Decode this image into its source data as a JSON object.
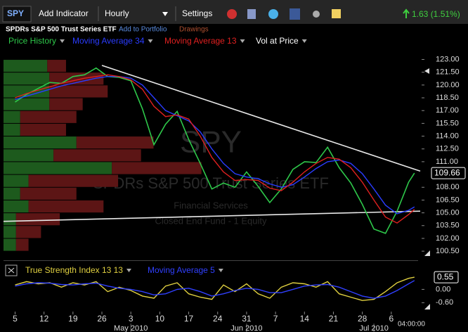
{
  "toolbar": {
    "symbol": "SPY",
    "add_indicator": "Add Indicator",
    "interval": "Hourly",
    "settings": "Settings",
    "change": "1.63 (1.51%)"
  },
  "header": {
    "name": "SPDRs S&P 500 Trust Series ETF",
    "add_portfolio": "Add to Portfolio",
    "drawings": "Drawings"
  },
  "watermark": [
    "SPY",
    "SPDRs S&P 500 Trust Series ETF",
    "Financial Services",
    "Closed End Fund - 1 Equity"
  ],
  "time_label": "04:00:00",
  "chart_data": [
    {
      "type": "line",
      "x": [
        0,
        2,
        4,
        6,
        8,
        10,
        12,
        14,
        16,
        18,
        20,
        22,
        24,
        26,
        28,
        30,
        32,
        34,
        36,
        38,
        40,
        42,
        44,
        46,
        48,
        50,
        52,
        54,
        56,
        58,
        60,
        62,
        64,
        66,
        68,
        69
      ],
      "series": [
        {
          "name": "Price History",
          "color": "#2ec84a",
          "values": [
            118.0,
            118.9,
            119.6,
            120.3,
            120.2,
            121.0,
            121.2,
            122.0,
            121.0,
            120.9,
            120.5,
            117.2,
            113.0,
            115.4,
            116.9,
            113.6,
            110.8,
            107.8,
            108.5,
            108.0,
            109.8,
            108.1,
            106.2,
            107.8,
            110.1,
            111.0,
            110.9,
            112.7,
            110.3,
            108.5,
            106.0,
            103.1,
            102.6,
            105.2,
            108.6,
            109.66
          ]
        },
        {
          "name": "Moving Average 34",
          "color": "#2a3cff",
          "values": [
            118.3,
            118.7,
            119.1,
            119.5,
            119.9,
            120.2,
            120.5,
            120.8,
            121.0,
            121.0,
            120.8,
            120.0,
            118.5,
            117.0,
            116.4,
            115.8,
            114.5,
            112.5,
            110.8,
            109.6,
            109.2,
            109.0,
            108.4,
            108.0,
            108.3,
            109.2,
            110.2,
            111.0,
            111.2,
            110.8,
            109.6,
            107.8,
            105.9,
            104.9,
            105.3,
            105.7
          ]
        },
        {
          "name": "Moving Average 13",
          "color": "#e02020",
          "values": [
            118.5,
            119.0,
            119.4,
            119.8,
            120.2,
            120.5,
            120.8,
            121.0,
            121.2,
            121.0,
            120.6,
            119.5,
            117.5,
            116.3,
            116.5,
            116.0,
            114.0,
            111.5,
            109.8,
            108.8,
            108.9,
            108.8,
            107.9,
            107.6,
            108.6,
            109.8,
            110.8,
            111.5,
            111.3,
            110.3,
            108.6,
            106.5,
            104.5,
            103.8,
            104.8,
            105.4
          ]
        }
      ],
      "vol_at_price": {
        "name": "Vol at Price",
        "levels": [
          121.5,
          120,
          118.5,
          117,
          115.5,
          114,
          112.5,
          111,
          109.5,
          108,
          106.5,
          105,
          103.5,
          102,
          100.5
        ],
        "step": 1.5,
        "xlim": [
          0,
          100
        ],
        "up": [
          10.5,
          11,
          11,
          11,
          4,
          4,
          17.5,
          12,
          26,
          6,
          4,
          6,
          3,
          3,
          3
        ],
        "down": [
          4.5,
          13,
          14,
          8,
          13.5,
          11,
          18.5,
          21,
          21.5,
          21.5,
          13.5,
          18,
          10.5,
          6,
          3
        ],
        "up_color": "#1d5a1d",
        "down_color": "#5c1515"
      },
      "trendlines": [
        {
          "x": [
            15,
            70
          ],
          "y": [
            122.3,
            109.9
          ]
        },
        {
          "x": [
            -2,
            70
          ],
          "y": [
            104.0,
            105.2
          ]
        }
      ],
      "last_value": 109.66,
      "xlim": [
        -2,
        70
      ],
      "ylim": [
        99.6,
        124.2
      ],
      "xticks": [
        {
          "value": 0,
          "label": "5"
        },
        {
          "value": 5,
          "label": "12"
        },
        {
          "value": 10,
          "label": "19"
        },
        {
          "value": 15,
          "label": "26"
        },
        {
          "value": 20,
          "label": "3"
        },
        {
          "value": 25,
          "label": "10"
        },
        {
          "value": 30,
          "label": "17"
        },
        {
          "value": 35,
          "label": "24"
        },
        {
          "value": 40,
          "label": "31"
        },
        {
          "value": 45,
          "label": "7"
        },
        {
          "value": 50,
          "label": "14"
        },
        {
          "value": 55,
          "label": "21"
        },
        {
          "value": 60,
          "label": "28"
        },
        {
          "value": 65,
          "label": "6"
        }
      ],
      "month_ticks": [
        {
          "value": 20,
          "label": "May 2010"
        },
        {
          "value": 40,
          "label": "Jun 2010"
        },
        {
          "value": 62,
          "label": "Jul 2010"
        }
      ],
      "yticks": [
        {
          "value": 100.5,
          "label": "100.50"
        },
        {
          "value": 102,
          "label": "102.00"
        },
        {
          "value": 103.5,
          "label": "103.50"
        },
        {
          "value": 105,
          "label": "105.00"
        },
        {
          "value": 106.5,
          "label": "106.50"
        },
        {
          "value": 108,
          "label": "108.00"
        },
        {
          "value": 111,
          "label": "111.00"
        },
        {
          "value": 112.5,
          "label": "112.50"
        },
        {
          "value": 114,
          "label": "114.00"
        },
        {
          "value": 115.5,
          "label": "115.50"
        },
        {
          "value": 117,
          "label": "117.00"
        },
        {
          "value": 118.5,
          "label": "118.50"
        },
        {
          "value": 120,
          "label": "120.00"
        },
        {
          "value": 121.5,
          "label": "121.50"
        },
        {
          "value": 123,
          "label": "123.00"
        }
      ]
    },
    {
      "type": "line",
      "series": [
        {
          "name": "True Strength Index 13 13",
          "color": "#e0d040",
          "values": [
            0.2,
            0.35,
            0.25,
            0.3,
            0.1,
            0.3,
            0.2,
            0.35,
            -0.1,
            0.1,
            -0.05,
            -0.3,
            -0.4,
            0.15,
            0.3,
            -0.2,
            -0.35,
            -0.45,
            0.2,
            -0.1,
            0.25,
            -0.2,
            -0.4,
            0.1,
            0.3,
            0.25,
            0.1,
            0.35,
            -0.2,
            -0.35,
            -0.5,
            -0.45,
            -0.1,
            0.3,
            0.5,
            0.55
          ]
        },
        {
          "name": "Moving Average 5",
          "color": "#3040ff",
          "values": [
            0.15,
            0.25,
            0.3,
            0.28,
            0.22,
            0.2,
            0.25,
            0.28,
            0.15,
            0.05,
            0.0,
            -0.1,
            -0.25,
            -0.2,
            0.0,
            0.05,
            -0.1,
            -0.3,
            -0.2,
            -0.05,
            0.05,
            0.0,
            -0.15,
            -0.15,
            0.0,
            0.15,
            0.2,
            0.22,
            0.1,
            -0.1,
            -0.3,
            -0.4,
            -0.3,
            -0.05,
            0.25,
            0.4
          ]
        }
      ],
      "last_value": 0.55,
      "ylim": [
        -0.97,
        1.06
      ],
      "yticks": [
        {
          "value": 0,
          "label": "0.00"
        },
        {
          "value": -0.6,
          "label": "-0.60"
        }
      ]
    }
  ]
}
